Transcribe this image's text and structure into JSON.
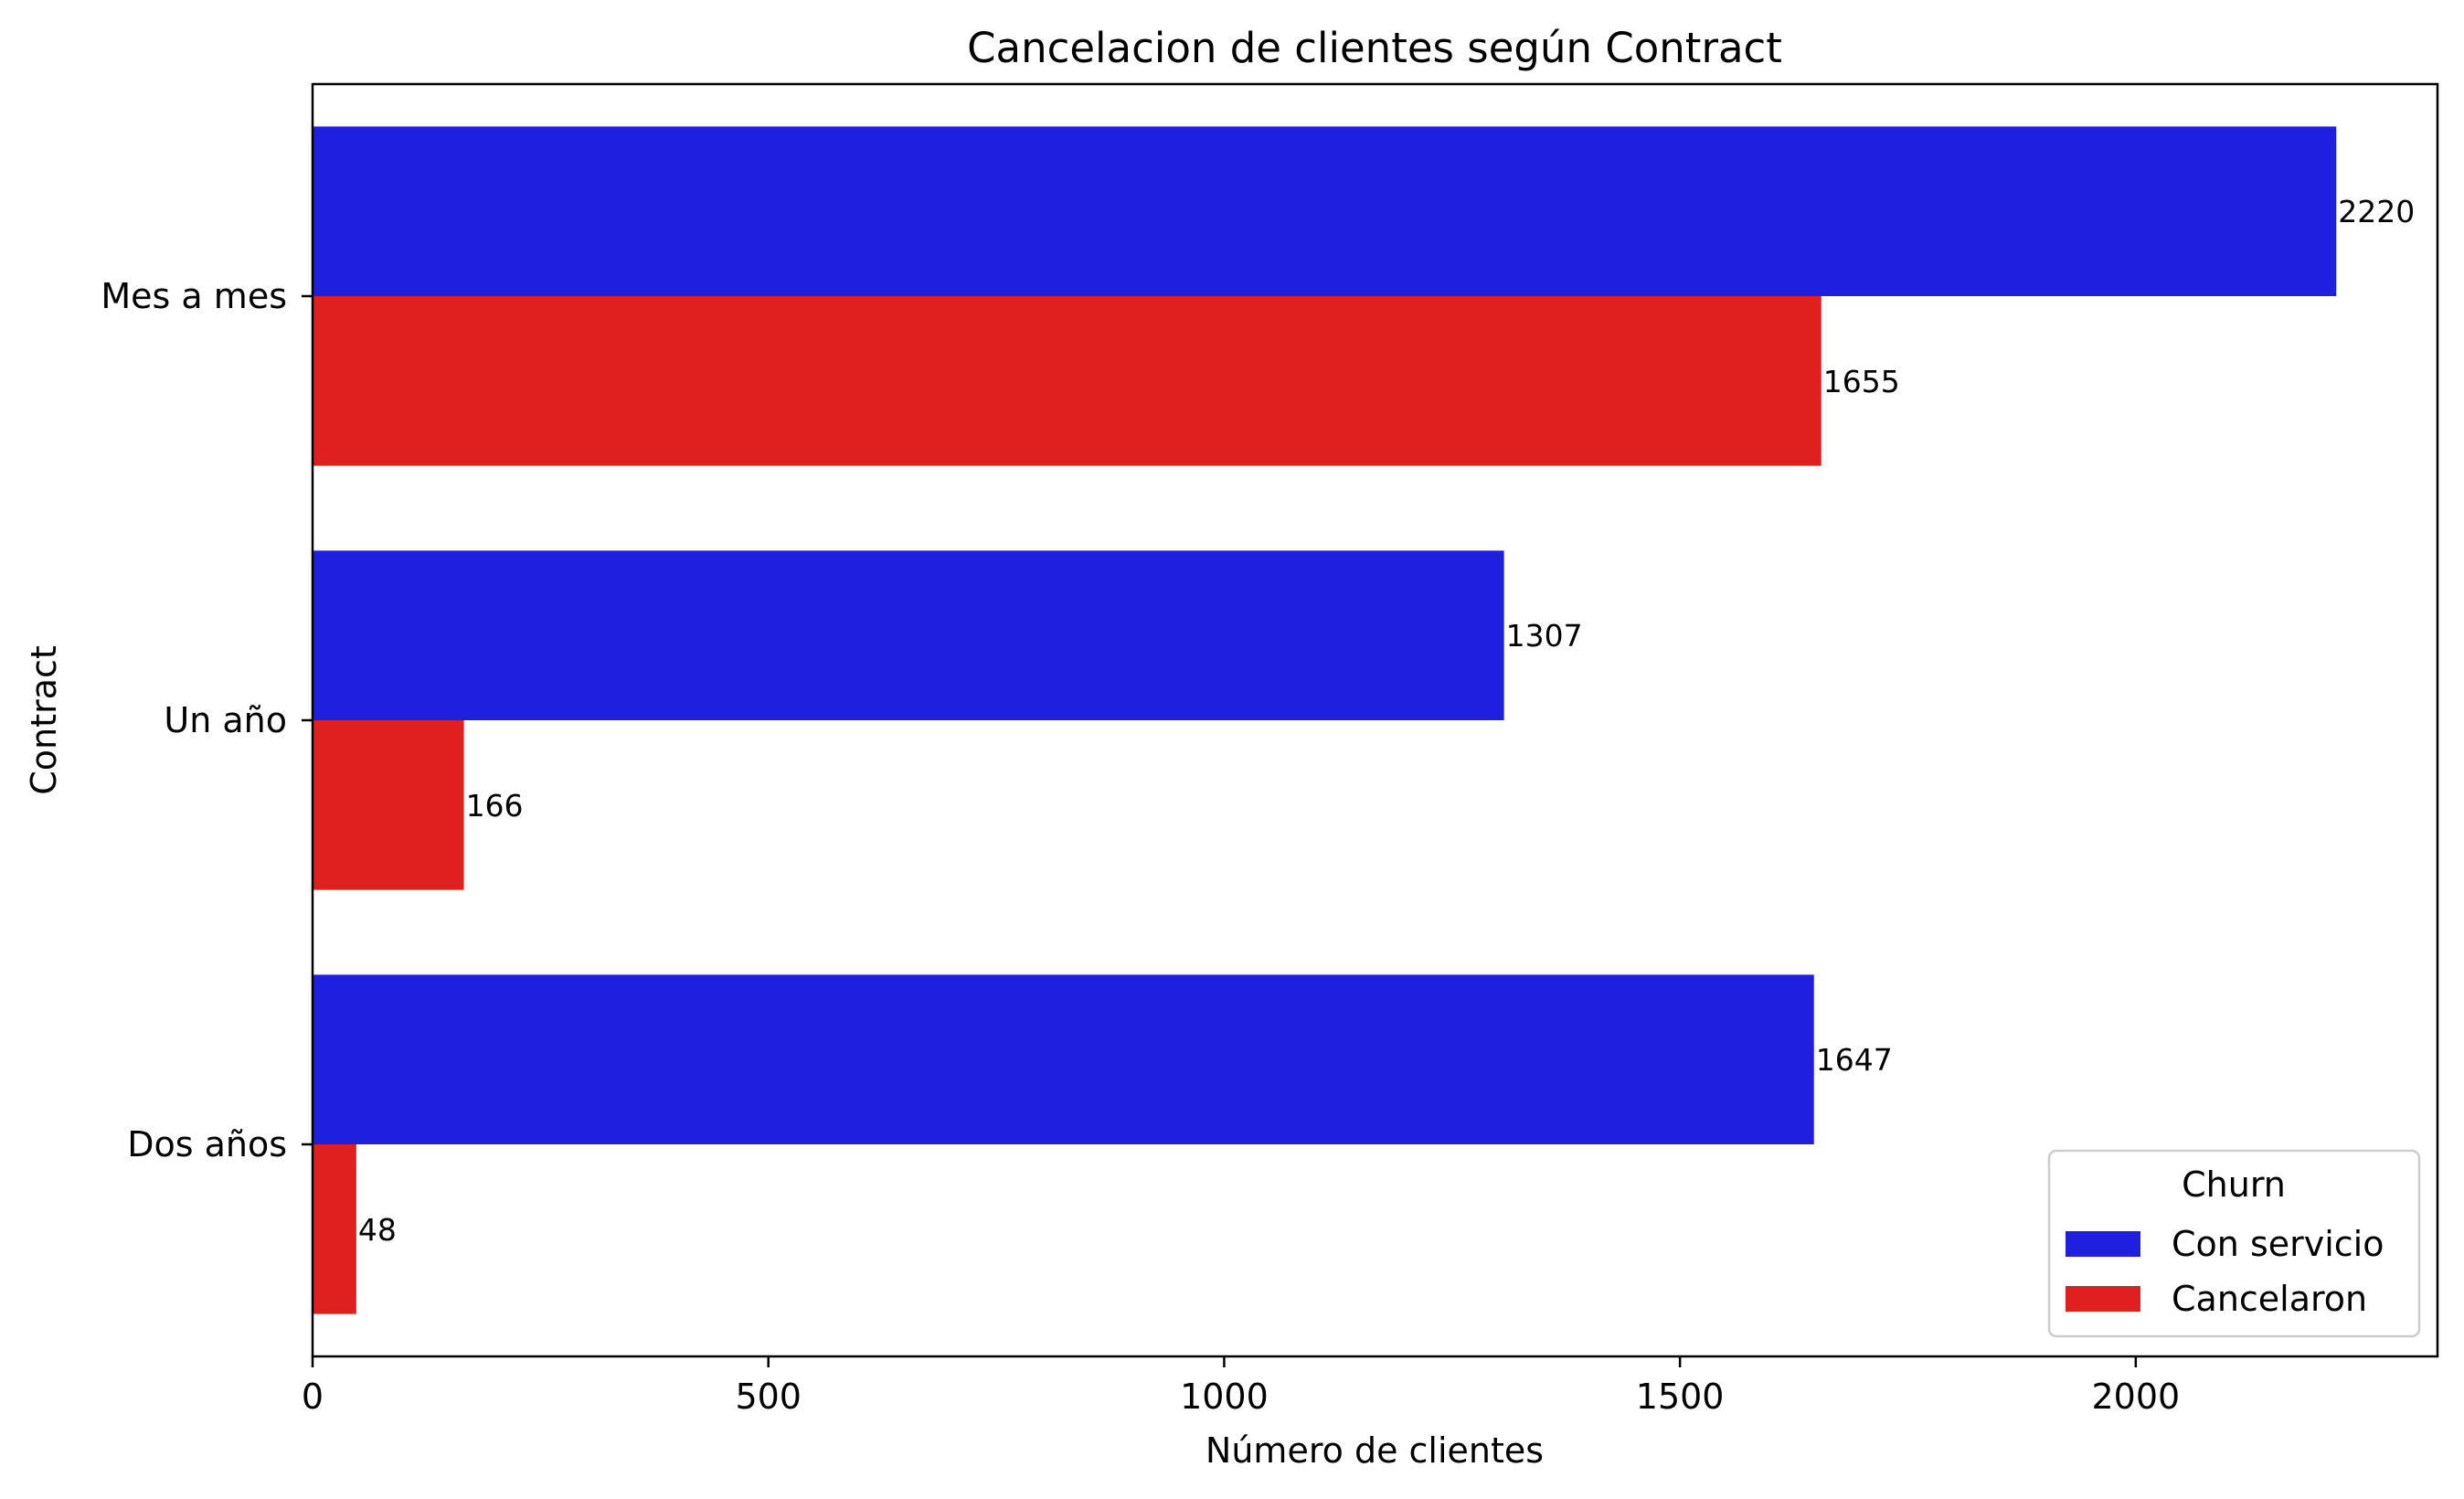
{
  "chart_data": {
    "type": "bar",
    "orientation": "horizontal",
    "title": "Cancelacion de clientes según Contract",
    "xlabel": "Número de clientes",
    "ylabel": "Contract",
    "categories": [
      "Mes a mes",
      "Un año",
      "Dos años"
    ],
    "series": [
      {
        "name": "Con servicio",
        "color": "#1f1fe0",
        "values": [
          2220,
          1307,
          1647
        ]
      },
      {
        "name": "Cancelaron",
        "color": "#e01f1f",
        "values": [
          1655,
          166,
          48
        ]
      }
    ],
    "xlim": [
      0,
      2331
    ],
    "xticks": [
      0,
      500,
      1000,
      1500,
      2000
    ],
    "grid": false,
    "legend": {
      "title": "Churn",
      "position": "lower-right"
    },
    "data_labels": true
  }
}
